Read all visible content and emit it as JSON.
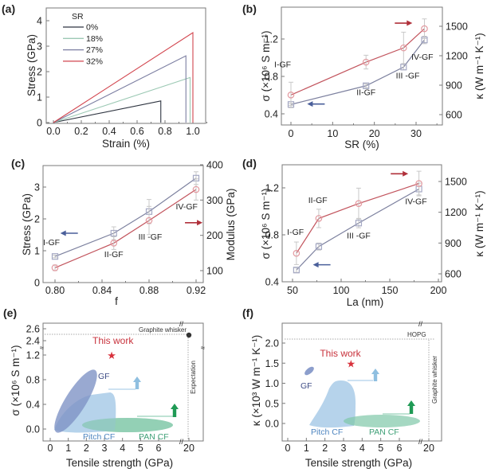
{
  "colors": {
    "frame": "#7a7a7a",
    "blue_series": "#8088a8",
    "red_series": "#c8505a",
    "sr0": "#2e3440",
    "sr18": "#9cc9b4",
    "sr27": "#7c7fa2",
    "sr32": "#d2454e",
    "gf_fill": "#7f93c6",
    "pitch_fill": "#a9cbe8",
    "pan_fill": "#7fc7a8",
    "this_work": "#d8323c",
    "arrow_blue": "#4a5f9a",
    "arrow_red": "#b0303a",
    "up_light": "#8fbfe0",
    "up_green": "#1f9a55"
  },
  "chart_data": [
    {
      "id": "a",
      "panel_label": "(a)",
      "type": "line",
      "xlabel": "Strain (%)",
      "ylabel": "Stress (GPa)",
      "xlim": [
        -0.05,
        1.1
      ],
      "ylim": [
        -0.1,
        4.5
      ],
      "xticks": [
        "0.0",
        "0.2",
        "0.4",
        "0.6",
        "0.8",
        "1.0"
      ],
      "xtick_values": [
        0,
        0.2,
        0.4,
        0.6,
        0.8,
        1.0
      ],
      "yticks": [
        "0",
        "1",
        "2",
        "3",
        "4"
      ],
      "ytick_values": [
        0,
        1,
        2,
        3,
        4
      ],
      "legend_title": "SR",
      "legend_position": "top-left",
      "series": [
        {
          "name": "0%",
          "color_key": "sr0",
          "fracture_strain": 0.77,
          "fracture_stress": 0.85
        },
        {
          "name": "18%",
          "color_key": "sr18",
          "fracture_strain": 0.98,
          "fracture_stress": 1.77
        },
        {
          "name": "27%",
          "color_key": "sr27",
          "fracture_strain": 0.95,
          "fracture_stress": 2.62
        },
        {
          "name": "32%",
          "color_key": "sr32",
          "fracture_strain": 1.0,
          "fracture_stress": 3.53
        }
      ]
    },
    {
      "id": "b",
      "panel_label": "(b)",
      "type": "line",
      "xlabel": "SR (%)",
      "ylabel": "σ (×10⁶ S m⁻¹)",
      "ylabel_right": "κ (W m⁻¹ K⁻¹)",
      "xlim": [
        -3,
        36
      ],
      "ylim": [
        0.4,
        1.5
      ],
      "ylim_right": [
        500,
        1650
      ],
      "xticks": [
        "0",
        "10",
        "20",
        "30"
      ],
      "xtick_values": [
        0,
        10,
        20,
        30
      ],
      "yticks": [
        "0.4",
        "0.8",
        "1.2"
      ],
      "ytick_values": [
        0.4,
        0.8,
        1.2
      ],
      "yticks_right": [
        "600",
        "900",
        "1200",
        "1500"
      ],
      "ytick_values_right": [
        600,
        900,
        1200,
        1500
      ],
      "x": [
        0,
        18,
        27,
        32
      ],
      "series": [
        {
          "name": "σ",
          "axis": "left",
          "marker": "square",
          "values": [
            0.5,
            0.7,
            0.9,
            1.19
          ],
          "errors": [
            0.01,
            0.02,
            0.03,
            0.04
          ]
        },
        {
          "name": "κ",
          "axis": "right",
          "marker": "circle",
          "values": [
            800,
            1135,
            1280,
            1475
          ],
          "errors": [
            130,
            70,
            160,
            100
          ]
        }
      ],
      "point_labels": [
        {
          "text": "I-GF",
          "x": -2,
          "y": 0.9
        },
        {
          "text": "II-GF",
          "x": 18,
          "y": 0.6
        },
        {
          "text": "III -GF",
          "x": 28,
          "y": 0.78
        },
        {
          "text": "IV-GF",
          "x": 31.5,
          "y": 0.98
        }
      ],
      "arrows": [
        {
          "dir": "left",
          "color_key": "arrow_blue",
          "x": 6,
          "y": 0.505
        },
        {
          "dir": "right",
          "color_key": "arrow_red",
          "x": 27,
          "y": 1.37
        }
      ]
    },
    {
      "id": "c",
      "panel_label": "(c)",
      "type": "line",
      "xlabel": "f",
      "ylabel": "Stress (GPa)",
      "ylabel_right": "Modulus (GPa)",
      "xlim": [
        0.79,
        0.93
      ],
      "ylim": [
        0,
        3.65
      ],
      "ylim_right": [
        60,
        400
      ],
      "xticks": [
        "0.80",
        "0.84",
        "0.88",
        "0.92"
      ],
      "xtick_values": [
        0.8,
        0.84,
        0.88,
        0.92
      ],
      "yticks": [
        "0",
        "1",
        "2",
        "3"
      ],
      "ytick_values": [
        0,
        1,
        2,
        3
      ],
      "yticks_right": [
        "100",
        "200",
        "300",
        "400"
      ],
      "ytick_values_right": [
        100,
        200,
        300,
        400
      ],
      "x": [
        0.8,
        0.85,
        0.88,
        0.92
      ],
      "series": [
        {
          "name": "Stress",
          "axis": "left",
          "marker": "square",
          "values": [
            0.82,
            1.55,
            2.23,
            3.28
          ],
          "errors": [
            0.04,
            0.2,
            0.38,
            0.2
          ]
        },
        {
          "name": "Modulus",
          "axis": "right",
          "marker": "circle",
          "values": [
            108,
            178,
            242,
            330
          ],
          "errors": [
            8,
            18,
            40,
            30
          ]
        }
      ],
      "point_labels": [
        {
          "text": "I-GF",
          "x": 0.797,
          "y": 1.18
        },
        {
          "text": "II-GF",
          "x": 0.85,
          "y": 0.8
        },
        {
          "text": "III -GF",
          "x": 0.881,
          "y": 1.35
        },
        {
          "text": "IV-GF",
          "x": 0.912,
          "y": 2.3
        }
      ],
      "arrows": [
        {
          "dir": "left",
          "color_key": "arrow_blue",
          "x": 0.812,
          "y": 1.55
        },
        {
          "dir": "right",
          "color_key": "arrow_red",
          "x": 0.918,
          "y": 1.88
        }
      ]
    },
    {
      "id": "d",
      "panel_label": "(d)",
      "type": "line",
      "xlabel": "La (nm)",
      "ylabel": "σ (×10⁶ S m⁻¹)",
      "ylabel_right": "κ (W m⁻¹ K⁻¹)",
      "xlim": [
        40,
        200
      ],
      "ylim": [
        0.4,
        1.45
      ],
      "ylim_right": [
        550,
        1650
      ],
      "xticks": [
        "50",
        "100",
        "150",
        "200"
      ],
      "xtick_values": [
        50,
        100,
        150,
        200
      ],
      "yticks": [
        "0.4",
        "0.8",
        "1.2"
      ],
      "ytick_values": [
        0.4,
        0.8,
        1.2
      ],
      "yticks_right": [
        "600",
        "900",
        "1200",
        "1500"
      ],
      "ytick_values_right": [
        600,
        900,
        1200,
        1500
      ],
      "x": [
        54,
        77,
        118,
        180
      ],
      "series": [
        {
          "name": "σ",
          "axis": "left",
          "marker": "square",
          "values": [
            0.5,
            0.7,
            0.9,
            1.19
          ],
          "errors": [
            0.02,
            0.03,
            0.04,
            0.05
          ]
        },
        {
          "name": "κ",
          "axis": "right",
          "marker": "circle",
          "values": [
            800,
            1140,
            1285,
            1480
          ],
          "errors": [
            110,
            90,
            150,
            120
          ]
        }
      ],
      "point_labels": [
        {
          "text": "I-GF",
          "x": 53,
          "y": 0.8
        },
        {
          "text": "II-GF",
          "x": 76,
          "y": 1.07
        },
        {
          "text": "III -GF",
          "x": 118,
          "y": 0.77
        },
        {
          "text": "IV-GF",
          "x": 177,
          "y": 1.06
        }
      ],
      "arrows": [
        {
          "dir": "left",
          "color_key": "arrow_blue",
          "x": 80,
          "y": 0.545
        },
        {
          "dir": "right",
          "color_key": "arrow_red",
          "x": 160,
          "y": 1.32
        }
      ]
    },
    {
      "id": "e",
      "panel_label": "(e)",
      "type": "scatter",
      "xlabel": "Tensile strength (GPa)",
      "ylabel": "σ (×10⁶ S m⁻¹)",
      "xticks": [
        "0",
        "1",
        "2",
        "3",
        "4",
        "5",
        "6",
        "20"
      ],
      "yticks": [
        "0.0",
        "0.4",
        "0.8",
        "1.2",
        "2.4",
        "2.6"
      ],
      "axis_breaks": [
        "x between 6 and 20",
        "y between 1.2 and 2.4"
      ],
      "this_work": {
        "label": "This work",
        "x": 3.4,
        "y": 1.2
      },
      "reference_point": {
        "label": "Graphite whisker",
        "x": 20,
        "y": 2.5
      },
      "expectation_label": "Expectation",
      "regions": [
        {
          "label": "GF",
          "x_range": [
            0.2,
            2.4
          ],
          "y_range": [
            0.0,
            0.93
          ]
        },
        {
          "label": "Pitch CF",
          "x_range": [
            0.6,
            3.6
          ],
          "y_range": [
            0.0,
            0.62
          ]
        },
        {
          "label": "PAN CF",
          "x_range": [
            1.6,
            6.9
          ],
          "y_range": [
            0.03,
            0.17
          ]
        }
      ],
      "up_arrows": [
        {
          "color_key": "up_light",
          "x": 4.8,
          "y": 0.7
        },
        {
          "color_key": "up_green",
          "x": 6.9,
          "y": 0.25
        }
      ]
    },
    {
      "id": "f",
      "panel_label": "(f)",
      "type": "scatter",
      "xlabel": "Tensile strength (GPa)",
      "ylabel": "κ (×10³ W m⁻¹ K⁻¹)",
      "xticks": [
        "0",
        "1",
        "2",
        "3",
        "4",
        "5",
        "6",
        "20"
      ],
      "yticks": [
        "0.0",
        "0.5",
        "1.0",
        "1.5",
        "2.0"
      ],
      "axis_breaks": [
        "x between 6 and 20"
      ],
      "this_work": {
        "label": "This work",
        "x": 3.4,
        "y": 1.5
      },
      "reference_lines": [
        {
          "label": "HOPG",
          "y": 2.1
        },
        {
          "label": "Graphite whisker",
          "x": 20
        }
      ],
      "regions": [
        {
          "label": "GF",
          "x_range": [
            0.9,
            1.5
          ],
          "y_range": [
            1.15,
            1.42
          ]
        },
        {
          "label": "Pitch CF",
          "x_range": [
            1.2,
            3.6
          ],
          "y_range": [
            -0.05,
            1.07
          ]
        },
        {
          "label": "PAN CF",
          "x_range": [
            2.8,
            7.0
          ],
          "y_range": [
            -0.1,
            0.17
          ]
        }
      ],
      "up_arrows": [
        {
          "color_key": "up_light",
          "x": 4.7,
          "y": 1.15
        },
        {
          "color_key": "up_green",
          "x": 6.7,
          "y": 0.35
        }
      ]
    }
  ]
}
